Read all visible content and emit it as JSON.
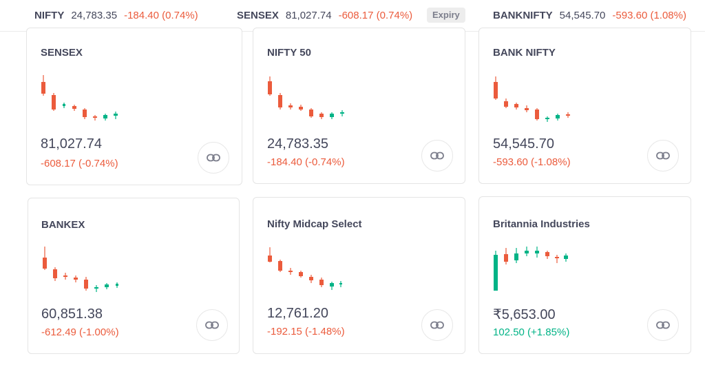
{
  "ticker": [
    {
      "name": "NIFTY",
      "value": "24,783.35",
      "change": "-184.40 (0.74%)"
    },
    {
      "name": "SENSEX",
      "value": "81,027.74",
      "change": "-608.17 (0.74%)",
      "badge": "Expiry"
    },
    {
      "name": "BANKNIFTY",
      "value": "54,545.70",
      "change": "-593.60 (1.08%)"
    }
  ],
  "cards": [
    {
      "title": "SENSEX",
      "price": "81,027.74",
      "change": "-608.17 (-0.74%)",
      "trend": "negative"
    },
    {
      "title": "NIFTY 50",
      "price": "24,783.35",
      "change": "-184.40 (-0.74%)",
      "trend": "negative"
    },
    {
      "title": "BANK NIFTY",
      "price": "54,545.70",
      "change": "-593.60 (-1.08%)",
      "trend": "negative"
    },
    {
      "title": "BANKEX",
      "price": "60,851.38",
      "change": "-612.49 (-1.00%)",
      "trend": "negative"
    },
    {
      "title": "Nifty Midcap Select",
      "price": "12,761.20",
      "change": "-192.15 (-1.48%)",
      "trend": "negative"
    },
    {
      "title": "Britannia Industries",
      "price": "₹5,653.00",
      "change": "102.50 (+1.85%)",
      "trend": "positive"
    }
  ],
  "colors": {
    "up": "#00b386",
    "down": "#eb5b3c",
    "text": "#44475b"
  },
  "icons": {
    "card_action": "link-icon"
  }
}
